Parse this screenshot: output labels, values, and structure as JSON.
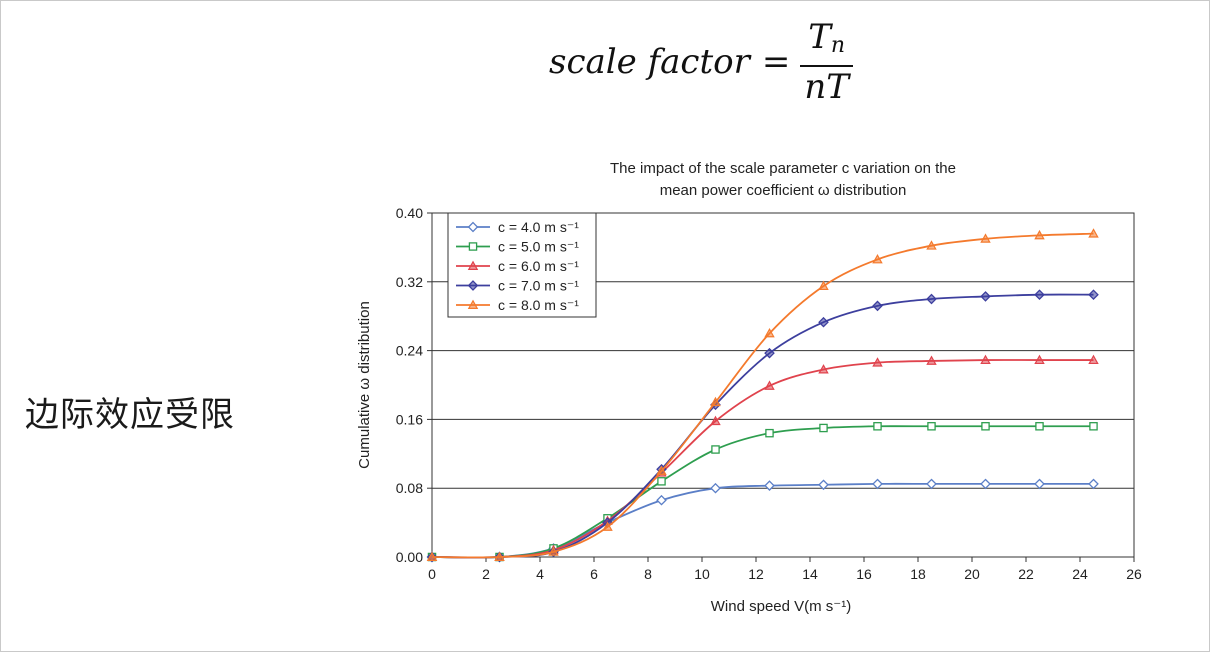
{
  "formula": {
    "lhs": "scale factor",
    "equals": "=",
    "numerator_main": "T",
    "numerator_sub": "n",
    "denominator": "nT"
  },
  "side_text": "边际效应受限",
  "chart_data": {
    "type": "line",
    "title_line1": "The impact of the scale parameter c variation on the",
    "title_line2": "mean power coefficient ω distribution",
    "xlabel": "Wind speed V(m s⁻¹)",
    "ylabel": "Cumulative ω distribution",
    "xlim": [
      0,
      26
    ],
    "ylim": [
      0,
      0.4
    ],
    "xticks": [
      0,
      2,
      4,
      6,
      8,
      10,
      12,
      14,
      16,
      18,
      20,
      22,
      24,
      26
    ],
    "yticks": [
      0.0,
      0.08,
      0.16,
      0.24,
      0.32,
      0.4
    ],
    "ytick_labels": [
      "0.00",
      "0.08",
      "0.16",
      "0.24",
      "0.32",
      "0.40"
    ],
    "grid": "horizontal",
    "legend_position": "top-left",
    "x": [
      0,
      2.5,
      4.5,
      6.5,
      8.5,
      10.5,
      12.5,
      14.5,
      16.5,
      18.5,
      20.5,
      22.5,
      24.5
    ],
    "series": [
      {
        "name": "c = 4.0 m s⁻¹",
        "color": "#5b7fc7",
        "marker": "diamond-open",
        "values": [
          0,
          0,
          0.01,
          0.04,
          0.066,
          0.08,
          0.083,
          0.084,
          0.085,
          0.085,
          0.085,
          0.085,
          0.085
        ]
      },
      {
        "name": "c = 5.0 m s⁻¹",
        "color": "#2e9e4f",
        "marker": "square-open",
        "values": [
          0,
          0,
          0.01,
          0.045,
          0.088,
          0.125,
          0.144,
          0.15,
          0.152,
          0.152,
          0.152,
          0.152,
          0.152
        ]
      },
      {
        "name": "c = 6.0 m s⁻¹",
        "color": "#e0434d",
        "marker": "triangle",
        "values": [
          0,
          0,
          0.008,
          0.042,
          0.098,
          0.158,
          0.199,
          0.218,
          0.226,
          0.228,
          0.229,
          0.229,
          0.229
        ]
      },
      {
        "name": "c = 7.0 m s⁻¹",
        "color": "#3d3f9e",
        "marker": "diamond",
        "values": [
          0,
          0,
          0.006,
          0.04,
          0.102,
          0.177,
          0.237,
          0.273,
          0.292,
          0.3,
          0.303,
          0.305,
          0.305
        ]
      },
      {
        "name": "c = 8.0 m s⁻¹",
        "color": "#f47a2d",
        "marker": "triangle",
        "values": [
          0,
          0,
          0.006,
          0.035,
          0.1,
          0.18,
          0.26,
          0.315,
          0.346,
          0.362,
          0.37,
          0.374,
          0.376
        ]
      }
    ]
  }
}
